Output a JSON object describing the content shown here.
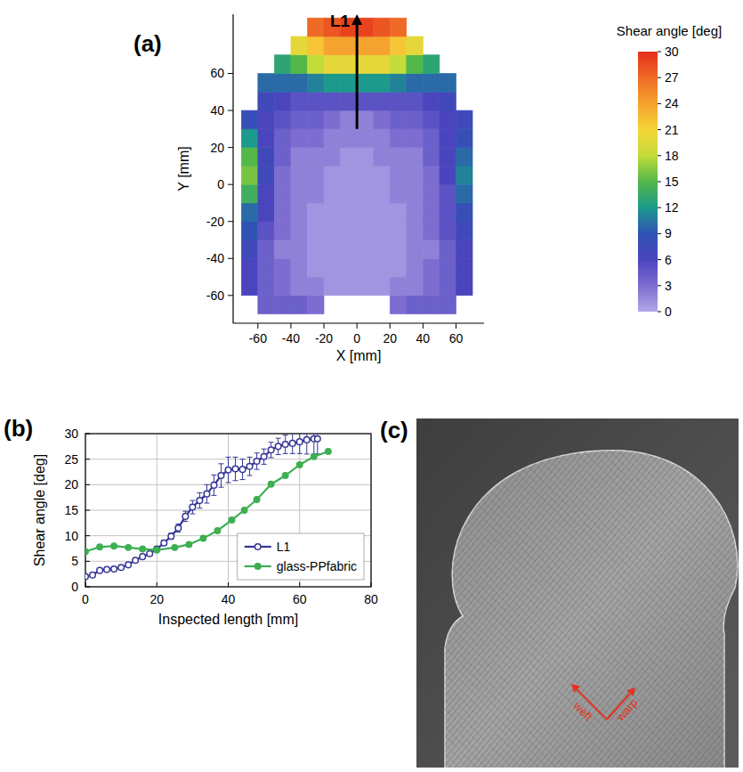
{
  "chart_data": [
    {
      "type": "heatmap",
      "panel_label": "(a)",
      "xlabel": "X [mm]",
      "ylabel": "Y [mm]",
      "xlim": [
        -75,
        77
      ],
      "ylim": [
        -75,
        92
      ],
      "xticks": [
        -60,
        -40,
        -20,
        0,
        20,
        40,
        60
      ],
      "yticks": [
        -60,
        -40,
        -20,
        0,
        20,
        40,
        60
      ],
      "x_edges": [
        -70,
        -60,
        -50,
        -40,
        -30,
        -20,
        -10,
        0,
        10,
        20,
        30,
        40,
        50,
        60,
        70
      ],
      "y_edges": [
        -70,
        -60,
        -50,
        -40,
        -30,
        -20,
        -10,
        0,
        10,
        20,
        30,
        40,
        50,
        60,
        70,
        80,
        90
      ],
      "values": [
        [
          null,
          4,
          4,
          4,
          3,
          null,
          null,
          null,
          null,
          3,
          4,
          4,
          4,
          null
        ],
        [
          6,
          4,
          3,
          2,
          2,
          1,
          1,
          1,
          1,
          2,
          2,
          3,
          4,
          6
        ],
        [
          6,
          4,
          3,
          2,
          1,
          1,
          1,
          1,
          1,
          1,
          2,
          3,
          4,
          6
        ],
        [
          7,
          4,
          2,
          2,
          1,
          1,
          1,
          1,
          1,
          1,
          2,
          2,
          4,
          6
        ],
        [
          9,
          5,
          3,
          2,
          1,
          1,
          1,
          1,
          1,
          1,
          2,
          3,
          5,
          7
        ],
        [
          10,
          6,
          3,
          2,
          1,
          1,
          1,
          1,
          1,
          1,
          2,
          3,
          5,
          8
        ],
        [
          14,
          6,
          3,
          2,
          2,
          1,
          1,
          1,
          1,
          2,
          2,
          3,
          5,
          10
        ],
        [
          16,
          7,
          3,
          2,
          2,
          1,
          1,
          1,
          1,
          2,
          2,
          3,
          6,
          11
        ],
        [
          15,
          7,
          4,
          2,
          2,
          2,
          1,
          1,
          2,
          2,
          2,
          4,
          6,
          10
        ],
        [
          12,
          6,
          4,
          3,
          3,
          2,
          2,
          2,
          2,
          3,
          3,
          4,
          6,
          8
        ],
        [
          8,
          6,
          5,
          4,
          4,
          3,
          2,
          2,
          3,
          4,
          4,
          5,
          6,
          7
        ],
        [
          null,
          7,
          6,
          5,
          5,
          5,
          5,
          5,
          5,
          5,
          5,
          6,
          7,
          null
        ],
        [
          null,
          10,
          10,
          10,
          11,
          12,
          12,
          12,
          12,
          11,
          10,
          10,
          10,
          null
        ],
        [
          null,
          null,
          13,
          15,
          18,
          20,
          20,
          20,
          20,
          18,
          15,
          13,
          null,
          null
        ],
        [
          null,
          null,
          null,
          20,
          22,
          24,
          24,
          24,
          24,
          22,
          20,
          null,
          null,
          null
        ],
        [
          null,
          null,
          null,
          null,
          27,
          28,
          29,
          29,
          28,
          27,
          null,
          null,
          null,
          null
        ]
      ],
      "colorbar": {
        "title": "Shear angle [deg]",
        "range": [
          0,
          30
        ],
        "ticks": [
          0,
          3,
          6,
          9,
          12,
          15,
          18,
          21,
          24,
          27,
          30
        ]
      },
      "annotations": [
        {
          "text": "L1",
          "x": 0,
          "y": 30,
          "x_end": 0,
          "y_end": 92
        }
      ]
    },
    {
      "type": "line",
      "panel_label": "(b)",
      "xlabel": "Inspected length [mm]",
      "ylabel": "Shear angle [deg]",
      "xlim": [
        0,
        80
      ],
      "ylim": [
        0,
        30
      ],
      "xticks": [
        0,
        20,
        40,
        60,
        80
      ],
      "yticks": [
        0,
        5,
        10,
        15,
        20,
        25,
        30
      ],
      "grid": true,
      "legend": "lower right",
      "series": [
        {
          "name": "L1",
          "color": "#353596",
          "marker": "open-circle",
          "x": [
            0,
            2,
            4,
            6,
            8,
            10,
            12,
            14,
            16,
            18,
            20,
            22,
            24,
            26,
            28,
            30,
            32,
            34,
            36,
            38,
            40,
            42,
            44,
            46,
            48,
            50,
            52,
            54,
            56,
            58,
            60,
            62,
            64,
            65
          ],
          "values": [
            2.0,
            2.3,
            3.2,
            3.4,
            3.5,
            3.8,
            4.3,
            5.2,
            5.9,
            6.5,
            7.4,
            8.6,
            9.9,
            11.5,
            13.8,
            15.6,
            16.9,
            18.2,
            19.9,
            21.8,
            22.9,
            23.1,
            23.0,
            23.6,
            24.6,
            25.5,
            26.8,
            27.5,
            27.9,
            28.1,
            28.4,
            28.8,
            29.0,
            29.0
          ],
          "errors": [
            0.2,
            0.2,
            0.3,
            0.3,
            0.3,
            0.3,
            0.3,
            0.4,
            0.4,
            0.4,
            0.5,
            0.5,
            0.6,
            0.8,
            1.0,
            1.3,
            1.5,
            1.8,
            2.0,
            2.3,
            2.5,
            2.3,
            2.0,
            1.8,
            1.6,
            1.5,
            1.5,
            1.6,
            1.8,
            2.0,
            2.3,
            2.8,
            3.0,
            3.0
          ]
        },
        {
          "name": "glass-PPfabric",
          "color": "#3daf52",
          "marker": "circle",
          "x": [
            0,
            4,
            8,
            12,
            16,
            20,
            25,
            29,
            33,
            37,
            41,
            44.5,
            48,
            52,
            56,
            60,
            64,
            68
          ],
          "values": [
            6.9,
            7.8,
            8.0,
            7.7,
            7.4,
            7.2,
            7.7,
            8.3,
            9.5,
            11.0,
            13.1,
            15.0,
            17.1,
            20.1,
            21.8,
            23.9,
            25.5,
            26.5
          ]
        }
      ]
    }
  ],
  "image": {
    "panel_label": "(c)",
    "labels": [
      "weft",
      "warp"
    ]
  }
}
